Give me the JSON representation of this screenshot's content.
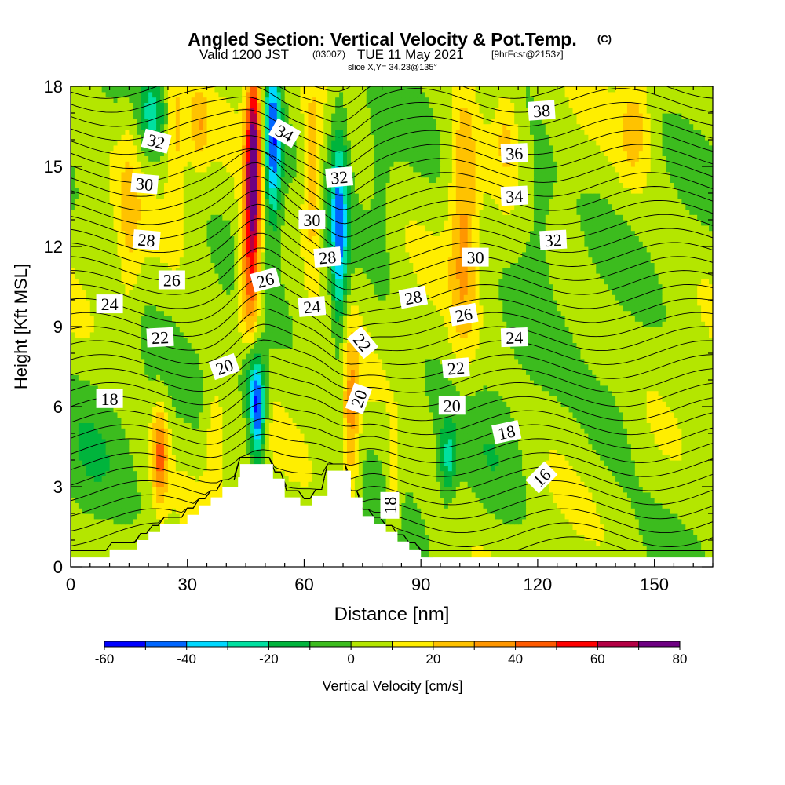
{
  "header": {
    "title": "Angled Section: Vertical Velocity & Pot.Temp.",
    "copyright": "(C)",
    "valid_prefix": "Valid 1200 JST",
    "valid_utc": "(0300Z)",
    "valid_date": "TUE 11 May 2021",
    "forecast": "[9hrFcst@2153z]",
    "slice": "slice X,Y= 34,23@135°"
  },
  "chart_data": {
    "type": "heatmap",
    "xlabel": "Distance [nm]",
    "ylabel": "Height [Kft MSL]",
    "xlim": [
      0,
      165
    ],
    "ylim": [
      0,
      18
    ],
    "x_ticks": [
      0,
      30,
      60,
      90,
      120,
      150
    ],
    "y_ticks": [
      0,
      3,
      6,
      9,
      12,
      15,
      18
    ],
    "colorbar": {
      "label": "Vertical Velocity [cm/s]",
      "levels": [
        -60,
        -50,
        -40,
        -30,
        -20,
        -10,
        0,
        10,
        20,
        30,
        40,
        50,
        60,
        70,
        80
      ],
      "tick_labels": [
        "-60",
        "-40",
        "-20",
        "0",
        "20",
        "40",
        "60",
        "80"
      ],
      "colors": [
        "#0000ff",
        "#0066ff",
        "#00d8ff",
        "#00e0a0",
        "#00b43c",
        "#3cbc1e",
        "#b4e600",
        "#ffee00",
        "#ffc200",
        "#ff9600",
        "#ff5a00",
        "#ff0000",
        "#b40044",
        "#6e0082"
      ]
    },
    "terrain_profile": [
      [
        0,
        0.35
      ],
      [
        10,
        0.35
      ],
      [
        10,
        0.65
      ],
      [
        17,
        0.65
      ],
      [
        17,
        1.0
      ],
      [
        20,
        1.0
      ],
      [
        20,
        1.3
      ],
      [
        23,
        1.3
      ],
      [
        23,
        1.6
      ],
      [
        30,
        1.6
      ],
      [
        30,
        1.95
      ],
      [
        33,
        1.95
      ],
      [
        33,
        2.3
      ],
      [
        36,
        2.3
      ],
      [
        36,
        2.6
      ],
      [
        39,
        2.6
      ],
      [
        39,
        3.0
      ],
      [
        43,
        3.0
      ],
      [
        43,
        3.35
      ],
      [
        43.5,
        3.35
      ],
      [
        43.5,
        3.85
      ],
      [
        52,
        3.85
      ],
      [
        52,
        3.3
      ],
      [
        55,
        3.3
      ],
      [
        55,
        2.6
      ],
      [
        59,
        2.6
      ],
      [
        59,
        2.3
      ],
      [
        62,
        2.3
      ],
      [
        62,
        2.65
      ],
      [
        66,
        2.65
      ],
      [
        66,
        3.6
      ],
      [
        72,
        3.6
      ],
      [
        72,
        2.6
      ],
      [
        75,
        2.6
      ],
      [
        75,
        1.9
      ],
      [
        78,
        1.9
      ],
      [
        78,
        1.6
      ],
      [
        81,
        1.6
      ],
      [
        81,
        1.3
      ],
      [
        84,
        1.3
      ],
      [
        84,
        0.95
      ],
      [
        87,
        0.95
      ],
      [
        87,
        0.65
      ],
      [
        90,
        0.65
      ],
      [
        90,
        0.35
      ],
      [
        165,
        0.35
      ]
    ],
    "vertical_velocity_features": [
      {
        "x": 47,
        "y": 15.5,
        "sx": 2.0,
        "sy": 3.5,
        "value": 70
      },
      {
        "x": 46,
        "y": 11.0,
        "sx": 2.6,
        "sy": 3.5,
        "value": 45
      },
      {
        "x": 52,
        "y": 16.0,
        "sx": 2.2,
        "sy": 3.0,
        "value": -55
      },
      {
        "x": 69,
        "y": 12.5,
        "sx": 2.2,
        "sy": 4.0,
        "value": -45
      },
      {
        "x": 48,
        "y": 5.8,
        "sx": 2.0,
        "sy": 1.8,
        "value": -58
      },
      {
        "x": 46,
        "y": 7.2,
        "sx": 2.8,
        "sy": 1.6,
        "value": -30
      },
      {
        "x": 23,
        "y": 4.2,
        "sx": 2.0,
        "sy": 1.8,
        "value": 38
      },
      {
        "x": 101,
        "y": 13.0,
        "sx": 3.5,
        "sy": 5.0,
        "value": 28
      },
      {
        "x": 97,
        "y": 4.0,
        "sx": 2.2,
        "sy": 1.5,
        "value": -25
      },
      {
        "x": 72,
        "y": 5.5,
        "sx": 2.2,
        "sy": 3.0,
        "value": 30
      },
      {
        "x": 21,
        "y": 17.0,
        "sx": 3.5,
        "sy": 1.5,
        "value": -25
      },
      {
        "x": 33,
        "y": 16.5,
        "sx": 2.5,
        "sy": 1.5,
        "value": 20
      },
      {
        "x": 27,
        "y": 16.0,
        "sx": 2.5,
        "sy": 3.0,
        "value": 18
      },
      {
        "x": 15,
        "y": 13.0,
        "sx": 3.0,
        "sy": 4.0,
        "value": 15
      },
      {
        "x": 62,
        "y": 14.5,
        "sx": 2.5,
        "sy": 3.0,
        "value": 32
      },
      {
        "x": 120,
        "y": 13.0,
        "sx": 5.0,
        "sy": 3.0,
        "value": -12
      },
      {
        "x": 145,
        "y": 16.5,
        "sx": 4.0,
        "sy": 2.0,
        "value": 20
      },
      {
        "x": 80,
        "y": 14.0,
        "sx": 3.0,
        "sy": 4.0,
        "value": -8
      },
      {
        "x": 112,
        "y": 16.5,
        "sx": 3.0,
        "sy": 2.0,
        "value": 15
      },
      {
        "x": 83,
        "y": 3.0,
        "sx": 2.0,
        "sy": 2.0,
        "value": 15
      },
      {
        "x": 37,
        "y": 5.0,
        "sx": 2.5,
        "sy": 2.0,
        "value": 15
      },
      {
        "x": 110,
        "y": 4.0,
        "sx": 8.0,
        "sy": 3.0,
        "value": -8
      },
      {
        "x": 140,
        "y": 5.5,
        "sx": 8.0,
        "sy": 2.5,
        "value": -8
      },
      {
        "x": 5,
        "y": 4.0,
        "sx": 8.0,
        "sy": 3.0,
        "value": -8
      }
    ],
    "theta_contour_levels": [
      16,
      18,
      20,
      22,
      24,
      26,
      28,
      30,
      32,
      34,
      36,
      38
    ],
    "theta_labels": [
      {
        "text": "38",
        "x": 121,
        "y": 17.1,
        "angle": -4
      },
      {
        "text": "36",
        "x": 114,
        "y": 15.5,
        "angle": -3
      },
      {
        "text": "34",
        "x": 114,
        "y": 13.9,
        "angle": -3
      },
      {
        "text": "32",
        "x": 124,
        "y": 12.25,
        "angle": -3
      },
      {
        "text": "30",
        "x": 104,
        "y": 11.6,
        "angle": 0
      },
      {
        "text": "28",
        "x": 88,
        "y": 10.1,
        "angle": -10
      },
      {
        "text": "26",
        "x": 101,
        "y": 9.45,
        "angle": -10
      },
      {
        "text": "24",
        "x": 114,
        "y": 8.6,
        "angle": -2
      },
      {
        "text": "22",
        "x": 99,
        "y": 7.45,
        "angle": -5
      },
      {
        "text": "20",
        "x": 98,
        "y": 6.05,
        "angle": 0
      },
      {
        "text": "18",
        "x": 112,
        "y": 5.05,
        "angle": -12
      },
      {
        "text": "16",
        "x": 121,
        "y": 3.35,
        "angle": -45
      },
      {
        "text": "18",
        "x": 82,
        "y": 2.3,
        "angle": -90
      },
      {
        "text": "20",
        "x": 74,
        "y": 6.3,
        "angle": -70
      },
      {
        "text": "22",
        "x": 75,
        "y": 8.4,
        "angle": 50
      },
      {
        "text": "24",
        "x": 62,
        "y": 9.75,
        "angle": -5
      },
      {
        "text": "26",
        "x": 50,
        "y": 10.75,
        "angle": -15
      },
      {
        "text": "28",
        "x": 66,
        "y": 11.6,
        "angle": -5
      },
      {
        "text": "30",
        "x": 62,
        "y": 13.0,
        "angle": 0
      },
      {
        "text": "32",
        "x": 69,
        "y": 14.6,
        "angle": -5
      },
      {
        "text": "34",
        "x": 55,
        "y": 16.25,
        "angle": 30
      },
      {
        "text": "32",
        "x": 22,
        "y": 15.95,
        "angle": 15
      },
      {
        "text": "30",
        "x": 19,
        "y": 14.35,
        "angle": 5
      },
      {
        "text": "28",
        "x": 19.5,
        "y": 12.25,
        "angle": 5
      },
      {
        "text": "26",
        "x": 26,
        "y": 10.75,
        "angle": 0
      },
      {
        "text": "24",
        "x": 10,
        "y": 9.85,
        "angle": 0
      },
      {
        "text": "22",
        "x": 23,
        "y": 8.6,
        "angle": -3
      },
      {
        "text": "20",
        "x": 39.5,
        "y": 7.5,
        "angle": -20
      },
      {
        "text": "18",
        "x": 10,
        "y": 6.3,
        "angle": 0
      }
    ]
  }
}
